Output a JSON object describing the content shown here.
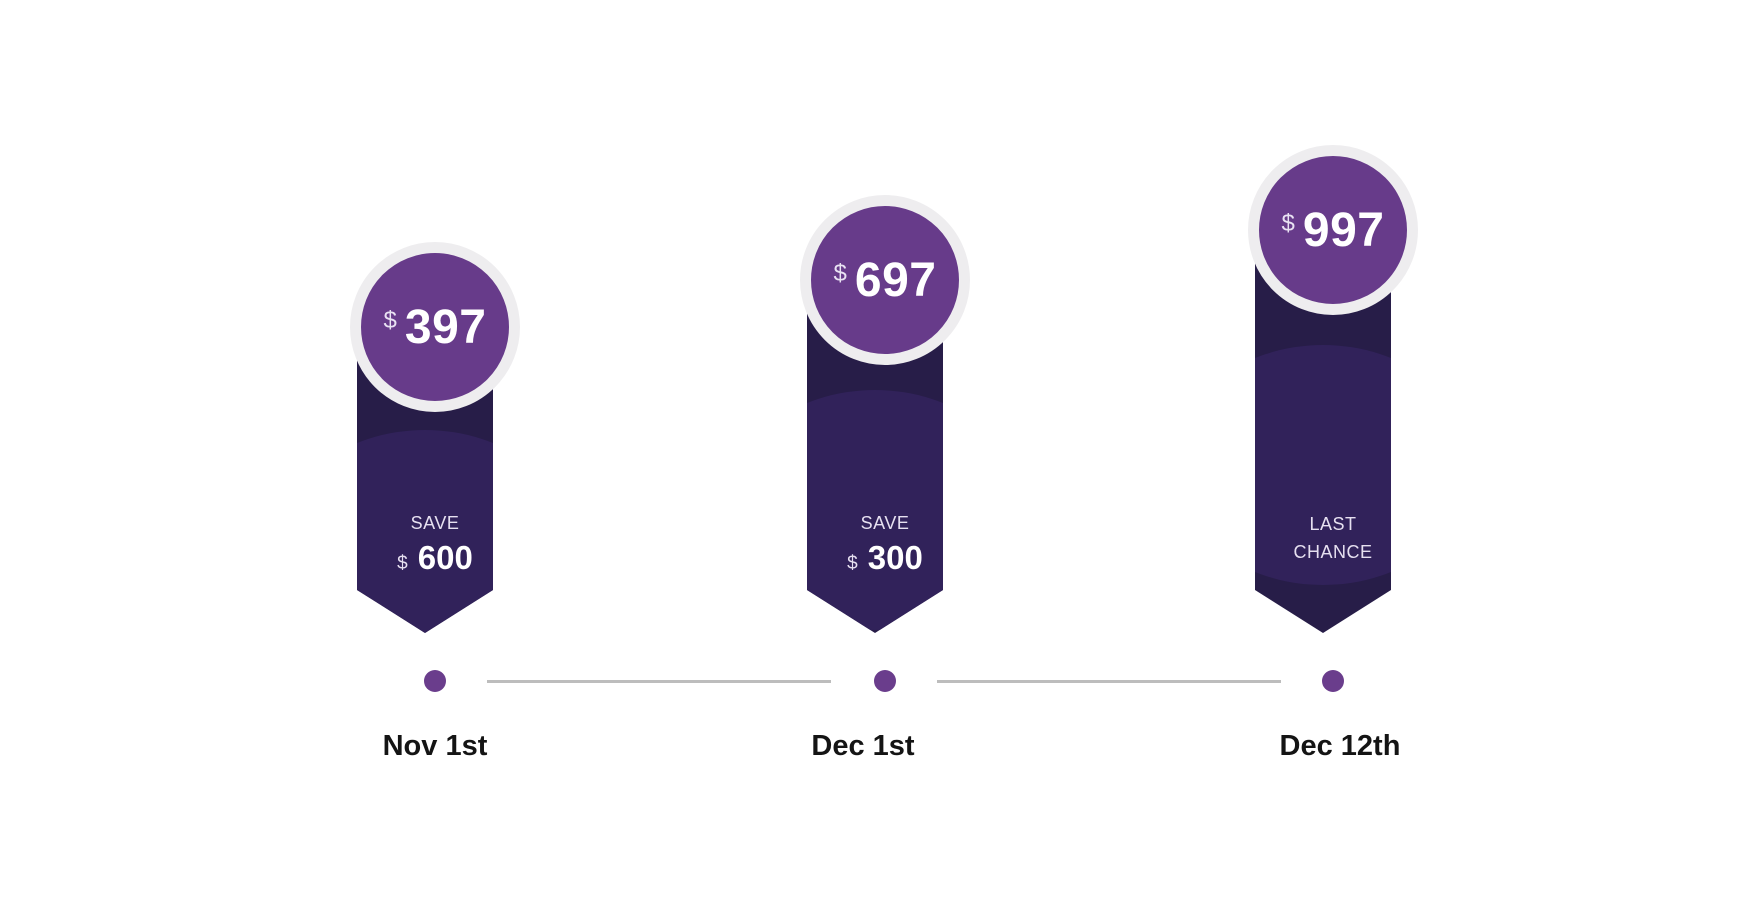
{
  "colors": {
    "circle": "#673b8a",
    "circle_ring": "#eeedef",
    "banner_dark": "#271d48",
    "banner": "#31225a",
    "dot": "#6a3d8c",
    "line": "#bdbdbd"
  },
  "timeline": {
    "tiers": [
      {
        "price_currency": "$",
        "price": "397",
        "caption": "SAVE",
        "save_currency": "$",
        "save_amount": "600",
        "date": "Nov 1st"
      },
      {
        "price_currency": "$",
        "price": "697",
        "caption": "SAVE",
        "save_currency": "$",
        "save_amount": "300",
        "date": "Dec 1st"
      },
      {
        "price_currency": "$",
        "price": "997",
        "caption_line1": "LAST",
        "caption_line2": "CHANCE",
        "date": "Dec 12th"
      }
    ]
  }
}
